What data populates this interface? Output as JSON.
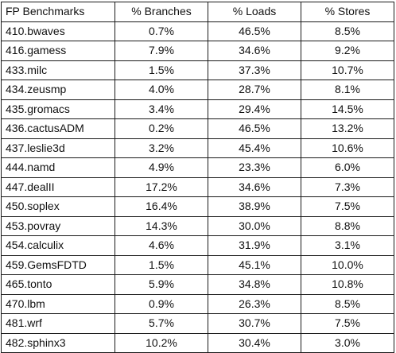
{
  "table": {
    "headers": [
      "FP Benchmarks",
      "% Branches",
      "% Loads",
      "% Stores"
    ],
    "rows": [
      [
        "410.bwaves",
        "0.7%",
        "46.5%",
        "8.5%"
      ],
      [
        "416.gamess",
        "7.9%",
        "34.6%",
        "9.2%"
      ],
      [
        "433.milc",
        "1.5%",
        "37.3%",
        "10.7%"
      ],
      [
        "434.zeusmp",
        "4.0%",
        "28.7%",
        "8.1%"
      ],
      [
        "435.gromacs",
        "3.4%",
        "29.4%",
        "14.5%"
      ],
      [
        "436.cactusADM",
        "0.2%",
        "46.5%",
        "13.2%"
      ],
      [
        "437.leslie3d",
        "3.2%",
        "45.4%",
        "10.6%"
      ],
      [
        "444.namd",
        "4.9%",
        "23.3%",
        "6.0%"
      ],
      [
        "447.dealII",
        "17.2%",
        "34.6%",
        "7.3%"
      ],
      [
        "450.soplex",
        "16.4%",
        "38.9%",
        "7.5%"
      ],
      [
        "453.povray",
        "14.3%",
        "30.0%",
        "8.8%"
      ],
      [
        "454.calculix",
        "4.6%",
        "31.9%",
        "3.1%"
      ],
      [
        "459.GemsFDTD",
        "1.5%",
        "45.1%",
        "10.0%"
      ],
      [
        "465.tonto",
        "5.9%",
        "34.8%",
        "10.8%"
      ],
      [
        "470.lbm",
        "0.9%",
        "26.3%",
        "8.5%"
      ],
      [
        "481.wrf",
        "5.7%",
        "30.7%",
        "7.5%"
      ],
      [
        "482.sphinx3",
        "10.2%",
        "30.4%",
        "3.0%"
      ]
    ]
  }
}
